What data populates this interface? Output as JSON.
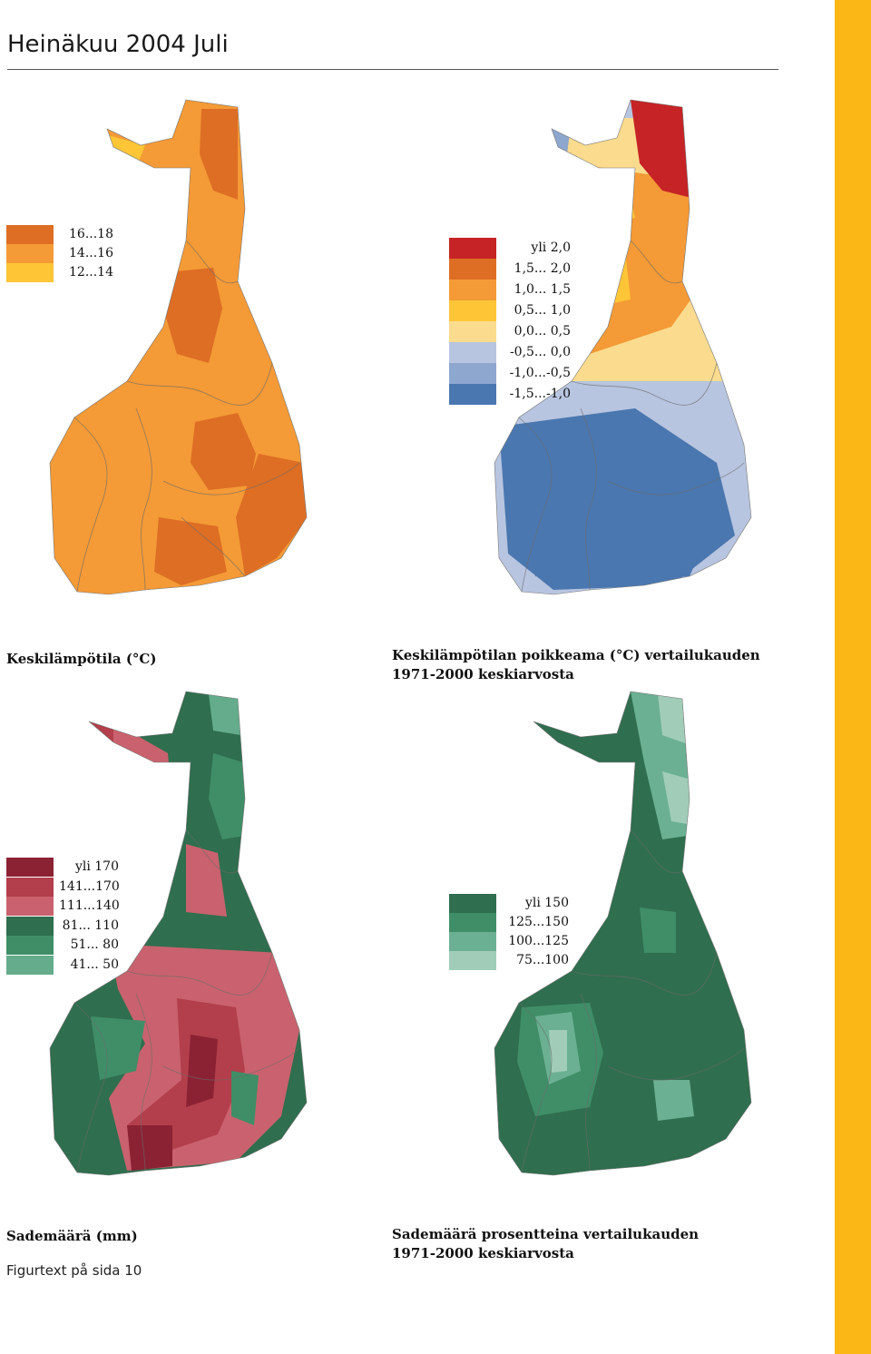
{
  "page": {
    "title": "Heinäkuu 2004 Juli",
    "figure_note": "Figurtext på sida 10"
  },
  "maps": {
    "temperature": {
      "caption": "Keskilämpötila (°C)",
      "base_color": "#f49a36",
      "region_colors": [
        "#dd6e24",
        "#fec537"
      ],
      "legend": [
        {
          "label": "16...18",
          "color": "#dd6e24"
        },
        {
          "label": "14...16",
          "color": "#f49a36"
        },
        {
          "label": "12...14",
          "color": "#fec537"
        }
      ]
    },
    "temperature_deviation": {
      "caption_line1": "Keskilämpötilan poikkeama (°C) vertailukauden",
      "caption_line2": "1971-2000 keskiarvosta",
      "base_color": "#b8c5e0",
      "region_colors": [
        "#c62326",
        "#dd6e24",
        "#f49a36",
        "#fec537",
        "#fbdc8e",
        "#8ea7cf",
        "#4a77af"
      ],
      "legend": [
        {
          "label": "yli 2,0",
          "color": "#c62326"
        },
        {
          "label": "1,5... 2,0",
          "color": "#dd6e24"
        },
        {
          "label": "1,0... 1,5",
          "color": "#f49a36"
        },
        {
          "label": "0,5... 1,0",
          "color": "#fec537"
        },
        {
          "label": "0,0... 0,5",
          "color": "#fbdc8e"
        },
        {
          "label": "-0,5... 0,0",
          "color": "#b8c5e0"
        },
        {
          "label": "-1,0...-0,5",
          "color": "#8ea7cf"
        },
        {
          "label": "-1,5...-1,0",
          "color": "#4a77af"
        }
      ]
    },
    "precipitation": {
      "caption": "Sademäärä (mm)",
      "base_color": "#2f6e4e",
      "region_colors": [
        "#c9626e",
        "#b23f4b",
        "#8b2234",
        "#3f8e67",
        "#64ac8b"
      ],
      "legend": [
        {
          "label": "yli 170",
          "color": "#8b2234"
        },
        {
          "label": "141...170",
          "color": "#b23f4b"
        },
        {
          "label": "111...140",
          "color": "#c9626e"
        },
        {
          "label": "81... 110",
          "color": "#2f6e4e"
        },
        {
          "label": "51... 80",
          "color": "#3f8e67"
        },
        {
          "label": "41... 50",
          "color": "#64ac8b"
        }
      ]
    },
    "precipitation_percent": {
      "caption_line1": "Sademäärä prosentteina vertailukauden",
      "caption_line2": "1971-2000 keskiarvosta",
      "base_color": "#2f6e4e",
      "region_colors": [
        "#3f8e67",
        "#6bb093",
        "#a1cdb8"
      ],
      "legend": [
        {
          "label": "yli 150",
          "color": "#2f6e4e"
        },
        {
          "label": "125...150",
          "color": "#3f8e67"
        },
        {
          "label": "100...125",
          "color": "#6bb093"
        },
        {
          "label": "75...100",
          "color": "#a1cdb8"
        }
      ]
    }
  }
}
